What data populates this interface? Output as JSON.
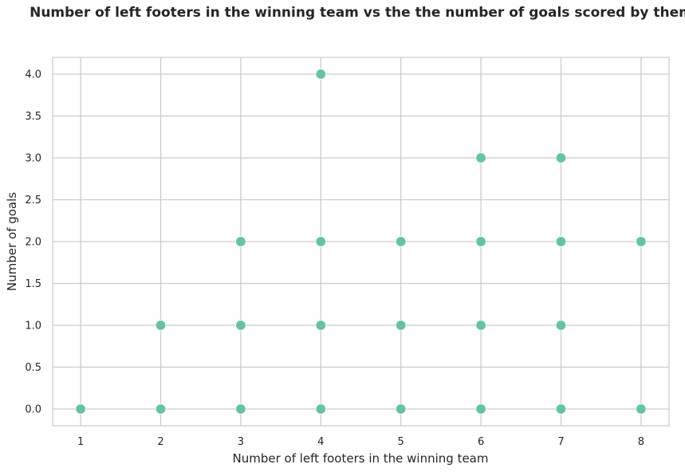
{
  "colors": {
    "point": "#66c2a5",
    "grid": "#cccccc",
    "spine": "#cccccc",
    "text": "#262626"
  },
  "chart_data": {
    "type": "scatter",
    "title": "Number of left footers in the winning team vs the the number of goals scored by them",
    "xlabel": "Number of left footers in the winning team",
    "ylabel": "Number of goals",
    "xlim": [
      0.65,
      8.35
    ],
    "ylim": [
      -0.2,
      4.2
    ],
    "xticks": [
      1,
      2,
      3,
      4,
      5,
      6,
      7,
      8
    ],
    "yticks": [
      "0.0",
      "0.5",
      "1.0",
      "1.5",
      "2.0",
      "2.5",
      "3.0",
      "3.5",
      "4.0"
    ],
    "grid": true,
    "points": [
      {
        "x": 1,
        "y": 0
      },
      {
        "x": 2,
        "y": 0
      },
      {
        "x": 2,
        "y": 1
      },
      {
        "x": 3,
        "y": 0
      },
      {
        "x": 3,
        "y": 1
      },
      {
        "x": 3,
        "y": 2
      },
      {
        "x": 4,
        "y": 0
      },
      {
        "x": 4,
        "y": 1
      },
      {
        "x": 4,
        "y": 2
      },
      {
        "x": 4,
        "y": 4
      },
      {
        "x": 5,
        "y": 0
      },
      {
        "x": 5,
        "y": 1
      },
      {
        "x": 5,
        "y": 2
      },
      {
        "x": 6,
        "y": 0
      },
      {
        "x": 6,
        "y": 1
      },
      {
        "x": 6,
        "y": 2
      },
      {
        "x": 6,
        "y": 3
      },
      {
        "x": 7,
        "y": 0
      },
      {
        "x": 7,
        "y": 1
      },
      {
        "x": 7,
        "y": 2
      },
      {
        "x": 7,
        "y": 3
      },
      {
        "x": 8,
        "y": 0
      },
      {
        "x": 8,
        "y": 2
      }
    ]
  }
}
